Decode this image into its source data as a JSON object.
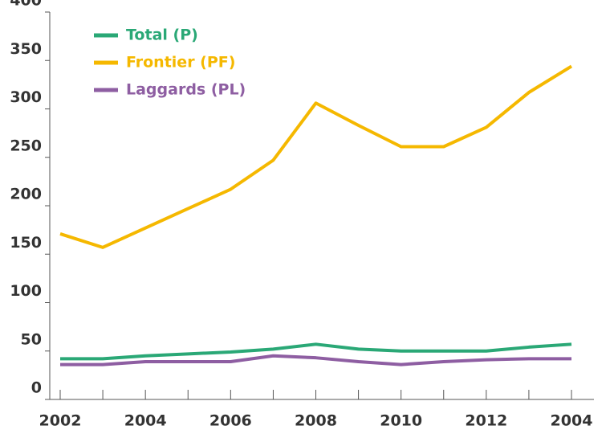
{
  "chart_data": {
    "type": "line",
    "categories": [
      "2002",
      null,
      "2004",
      null,
      "2006",
      null,
      "2008",
      null,
      "2010",
      null,
      "2012",
      null,
      "2004"
    ],
    "series": [
      {
        "name": "Total (P)",
        "color": "#2aa876",
        "values": [
          42,
          42,
          45,
          47,
          49,
          52,
          57,
          52,
          50,
          50,
          50,
          54,
          57
        ]
      },
      {
        "name": "Frontier (PF)",
        "color": "#f5b800",
        "values": [
          171,
          157,
          177,
          197,
          217,
          247,
          306,
          283,
          261,
          261,
          281,
          317,
          344
        ]
      },
      {
        "name": "Laggards (PL)",
        "color": "#8e5ea2",
        "values": [
          36,
          36,
          39,
          39,
          39,
          45,
          43,
          39,
          36,
          39,
          41,
          42,
          42
        ]
      }
    ],
    "ylim": [
      0,
      400
    ],
    "yticks": [
      0,
      50,
      100,
      150,
      200,
      250,
      300,
      350,
      400
    ],
    "legend": "upper-left"
  }
}
